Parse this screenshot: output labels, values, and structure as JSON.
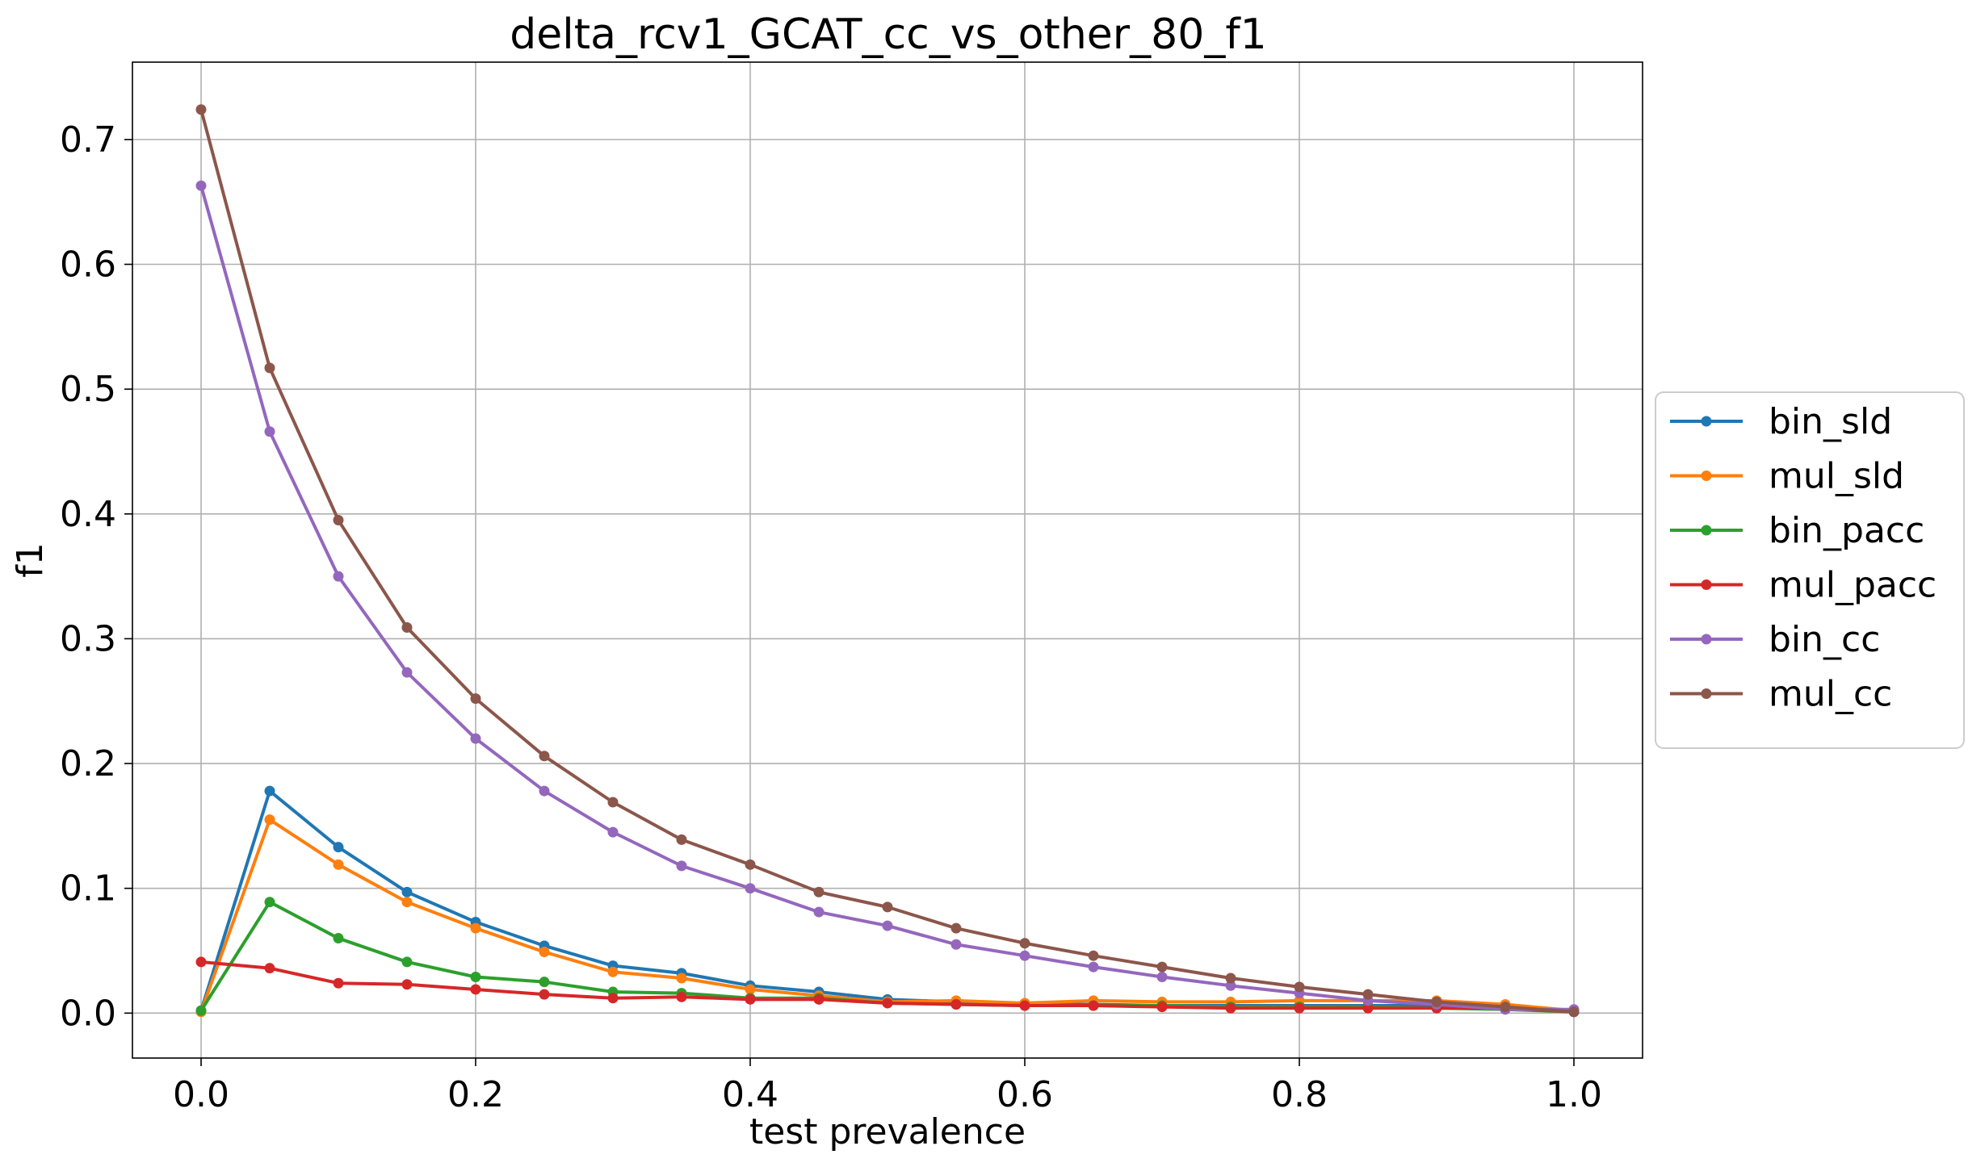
{
  "chart_data": {
    "type": "line",
    "title": "delta_rcv1_GCAT_cc_vs_other_80_f1",
    "xlabel": "test prevalence",
    "ylabel": "f1",
    "xlim": [
      -0.05,
      1.05
    ],
    "ylim": [
      -0.036,
      0.762
    ],
    "xticks": [
      0.0,
      0.2,
      0.4,
      0.6,
      0.8,
      1.0
    ],
    "xtick_labels": [
      "0.0",
      "0.2",
      "0.4",
      "0.6",
      "0.8",
      "1.0"
    ],
    "yticks": [
      0.0,
      0.1,
      0.2,
      0.3,
      0.4,
      0.5,
      0.6,
      0.7
    ],
    "ytick_labels": [
      "0.0",
      "0.1",
      "0.2",
      "0.3",
      "0.4",
      "0.5",
      "0.6",
      "0.7"
    ],
    "grid": true,
    "legend_position": "center-right-outside",
    "x": [
      0.0,
      0.05,
      0.1,
      0.15,
      0.2,
      0.25,
      0.3,
      0.35,
      0.4,
      0.45,
      0.5,
      0.55,
      0.6,
      0.65,
      0.7,
      0.75,
      0.8,
      0.85,
      0.9,
      0.95,
      1.0
    ],
    "series": [
      {
        "name": "bin_sld",
        "color": "#1f77b4",
        "values": [
          0.002,
          0.178,
          0.133,
          0.097,
          0.073,
          0.054,
          0.038,
          0.032,
          0.022,
          0.017,
          0.011,
          0.009,
          0.007,
          0.007,
          0.006,
          0.006,
          0.006,
          0.006,
          0.006,
          0.004,
          0.001
        ]
      },
      {
        "name": "mul_sld",
        "color": "#ff7f0e",
        "values": [
          0.001,
          0.155,
          0.119,
          0.089,
          0.068,
          0.049,
          0.033,
          0.028,
          0.019,
          0.014,
          0.009,
          0.01,
          0.008,
          0.01,
          0.009,
          0.009,
          0.01,
          0.01,
          0.01,
          0.007,
          0.002
        ]
      },
      {
        "name": "bin_pacc",
        "color": "#2ca02c",
        "values": [
          0.002,
          0.089,
          0.06,
          0.041,
          0.029,
          0.025,
          0.017,
          0.016,
          0.012,
          0.012,
          0.008,
          0.007,
          0.006,
          0.006,
          0.006,
          0.005,
          0.005,
          0.005,
          0.004,
          0.003,
          0.001
        ]
      },
      {
        "name": "mul_pacc",
        "color": "#d62728",
        "values": [
          0.041,
          0.036,
          0.024,
          0.023,
          0.019,
          0.015,
          0.012,
          0.013,
          0.011,
          0.011,
          0.008,
          0.007,
          0.006,
          0.006,
          0.005,
          0.004,
          0.004,
          0.004,
          0.004,
          0.004,
          0.001
        ]
      },
      {
        "name": "bin_cc",
        "color": "#9467bd",
        "values": [
          0.663,
          0.466,
          0.35,
          0.273,
          0.22,
          0.178,
          0.145,
          0.118,
          0.1,
          0.081,
          0.07,
          0.055,
          0.046,
          0.037,
          0.029,
          0.022,
          0.016,
          0.01,
          0.007,
          0.003,
          0.003
        ]
      },
      {
        "name": "mul_cc",
        "color": "#8c564b",
        "values": [
          0.724,
          0.517,
          0.395,
          0.309,
          0.252,
          0.206,
          0.169,
          0.139,
          0.119,
          0.097,
          0.085,
          0.068,
          0.056,
          0.046,
          0.037,
          0.028,
          0.021,
          0.015,
          0.009,
          0.005,
          0.001
        ]
      }
    ]
  }
}
